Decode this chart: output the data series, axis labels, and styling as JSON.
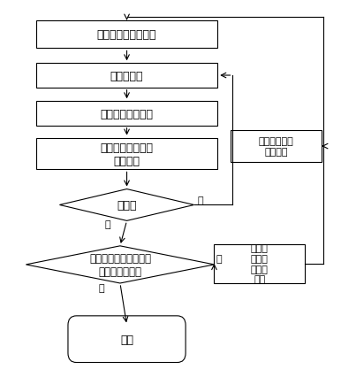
{
  "bg_color": "#ffffff",
  "box_color": "#ffffff",
  "box_edge": "#000000",
  "line_color": "#000000",
  "font_color": "#000000",
  "font_size": 9,
  "title": "初始优化模型的建立",
  "fe": "有限元分析",
  "sens": "灵敏度计算和过滤",
  "update": "根据最佳准则更新\n密度变量",
  "conv": "收敛否",
  "maxiter": "最大迭代数或密度变化\n最大极限满足否",
  "end": "结束",
  "next": "下一层优化模\n型的建立",
  "modify": "修改保\n留单元\n数和体\n积比",
  "yes": "是",
  "no": "否"
}
